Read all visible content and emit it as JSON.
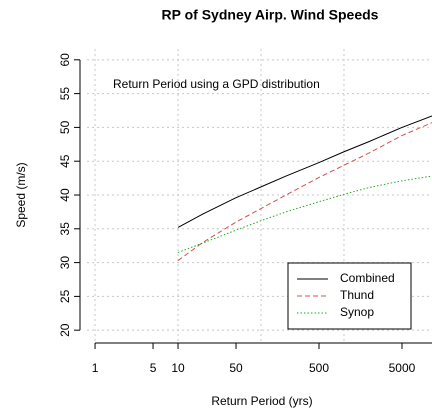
{
  "chart_data": {
    "type": "line",
    "title": "RP of Sydney Airp. Wind Speeds",
    "annotation": "Return Period using a GPD distribution",
    "xlabel": "Return Period (yrs)",
    "ylabel": "Speed (m/s)",
    "xscale": "log",
    "xlim": [
      0.8,
      11500
    ],
    "ylim": [
      18.4,
      61.6
    ],
    "xticks": [
      1,
      5,
      10,
      50,
      500,
      5000
    ],
    "yticks": [
      20,
      25,
      30,
      35,
      40,
      45,
      50,
      55,
      60
    ],
    "x_gridlines": [
      1,
      10,
      100,
      1000
    ],
    "grid": true,
    "legend": "bottom-right",
    "x": [
      10,
      20,
      50,
      100,
      200,
      500,
      1000,
      2000,
      5000,
      11500
    ],
    "series": [
      {
        "name": "Combined",
        "color": "#000000",
        "dash": "solid",
        "values": [
          35.2,
          37.2,
          39.6,
          41.2,
          42.8,
          44.8,
          46.4,
          47.9,
          50.0,
          51.7
        ]
      },
      {
        "name": "Thund",
        "color": "#d05050",
        "dash": "dashed",
        "values": [
          30.3,
          33.0,
          36.0,
          38.0,
          40.0,
          42.6,
          44.4,
          46.2,
          48.8,
          50.7
        ]
      },
      {
        "name": "Synop",
        "color": "#22aa22",
        "dash": "dotted",
        "values": [
          31.5,
          32.9,
          34.8,
          36.2,
          37.5,
          39.0,
          40.1,
          41.1,
          42.1,
          42.8
        ]
      }
    ]
  }
}
